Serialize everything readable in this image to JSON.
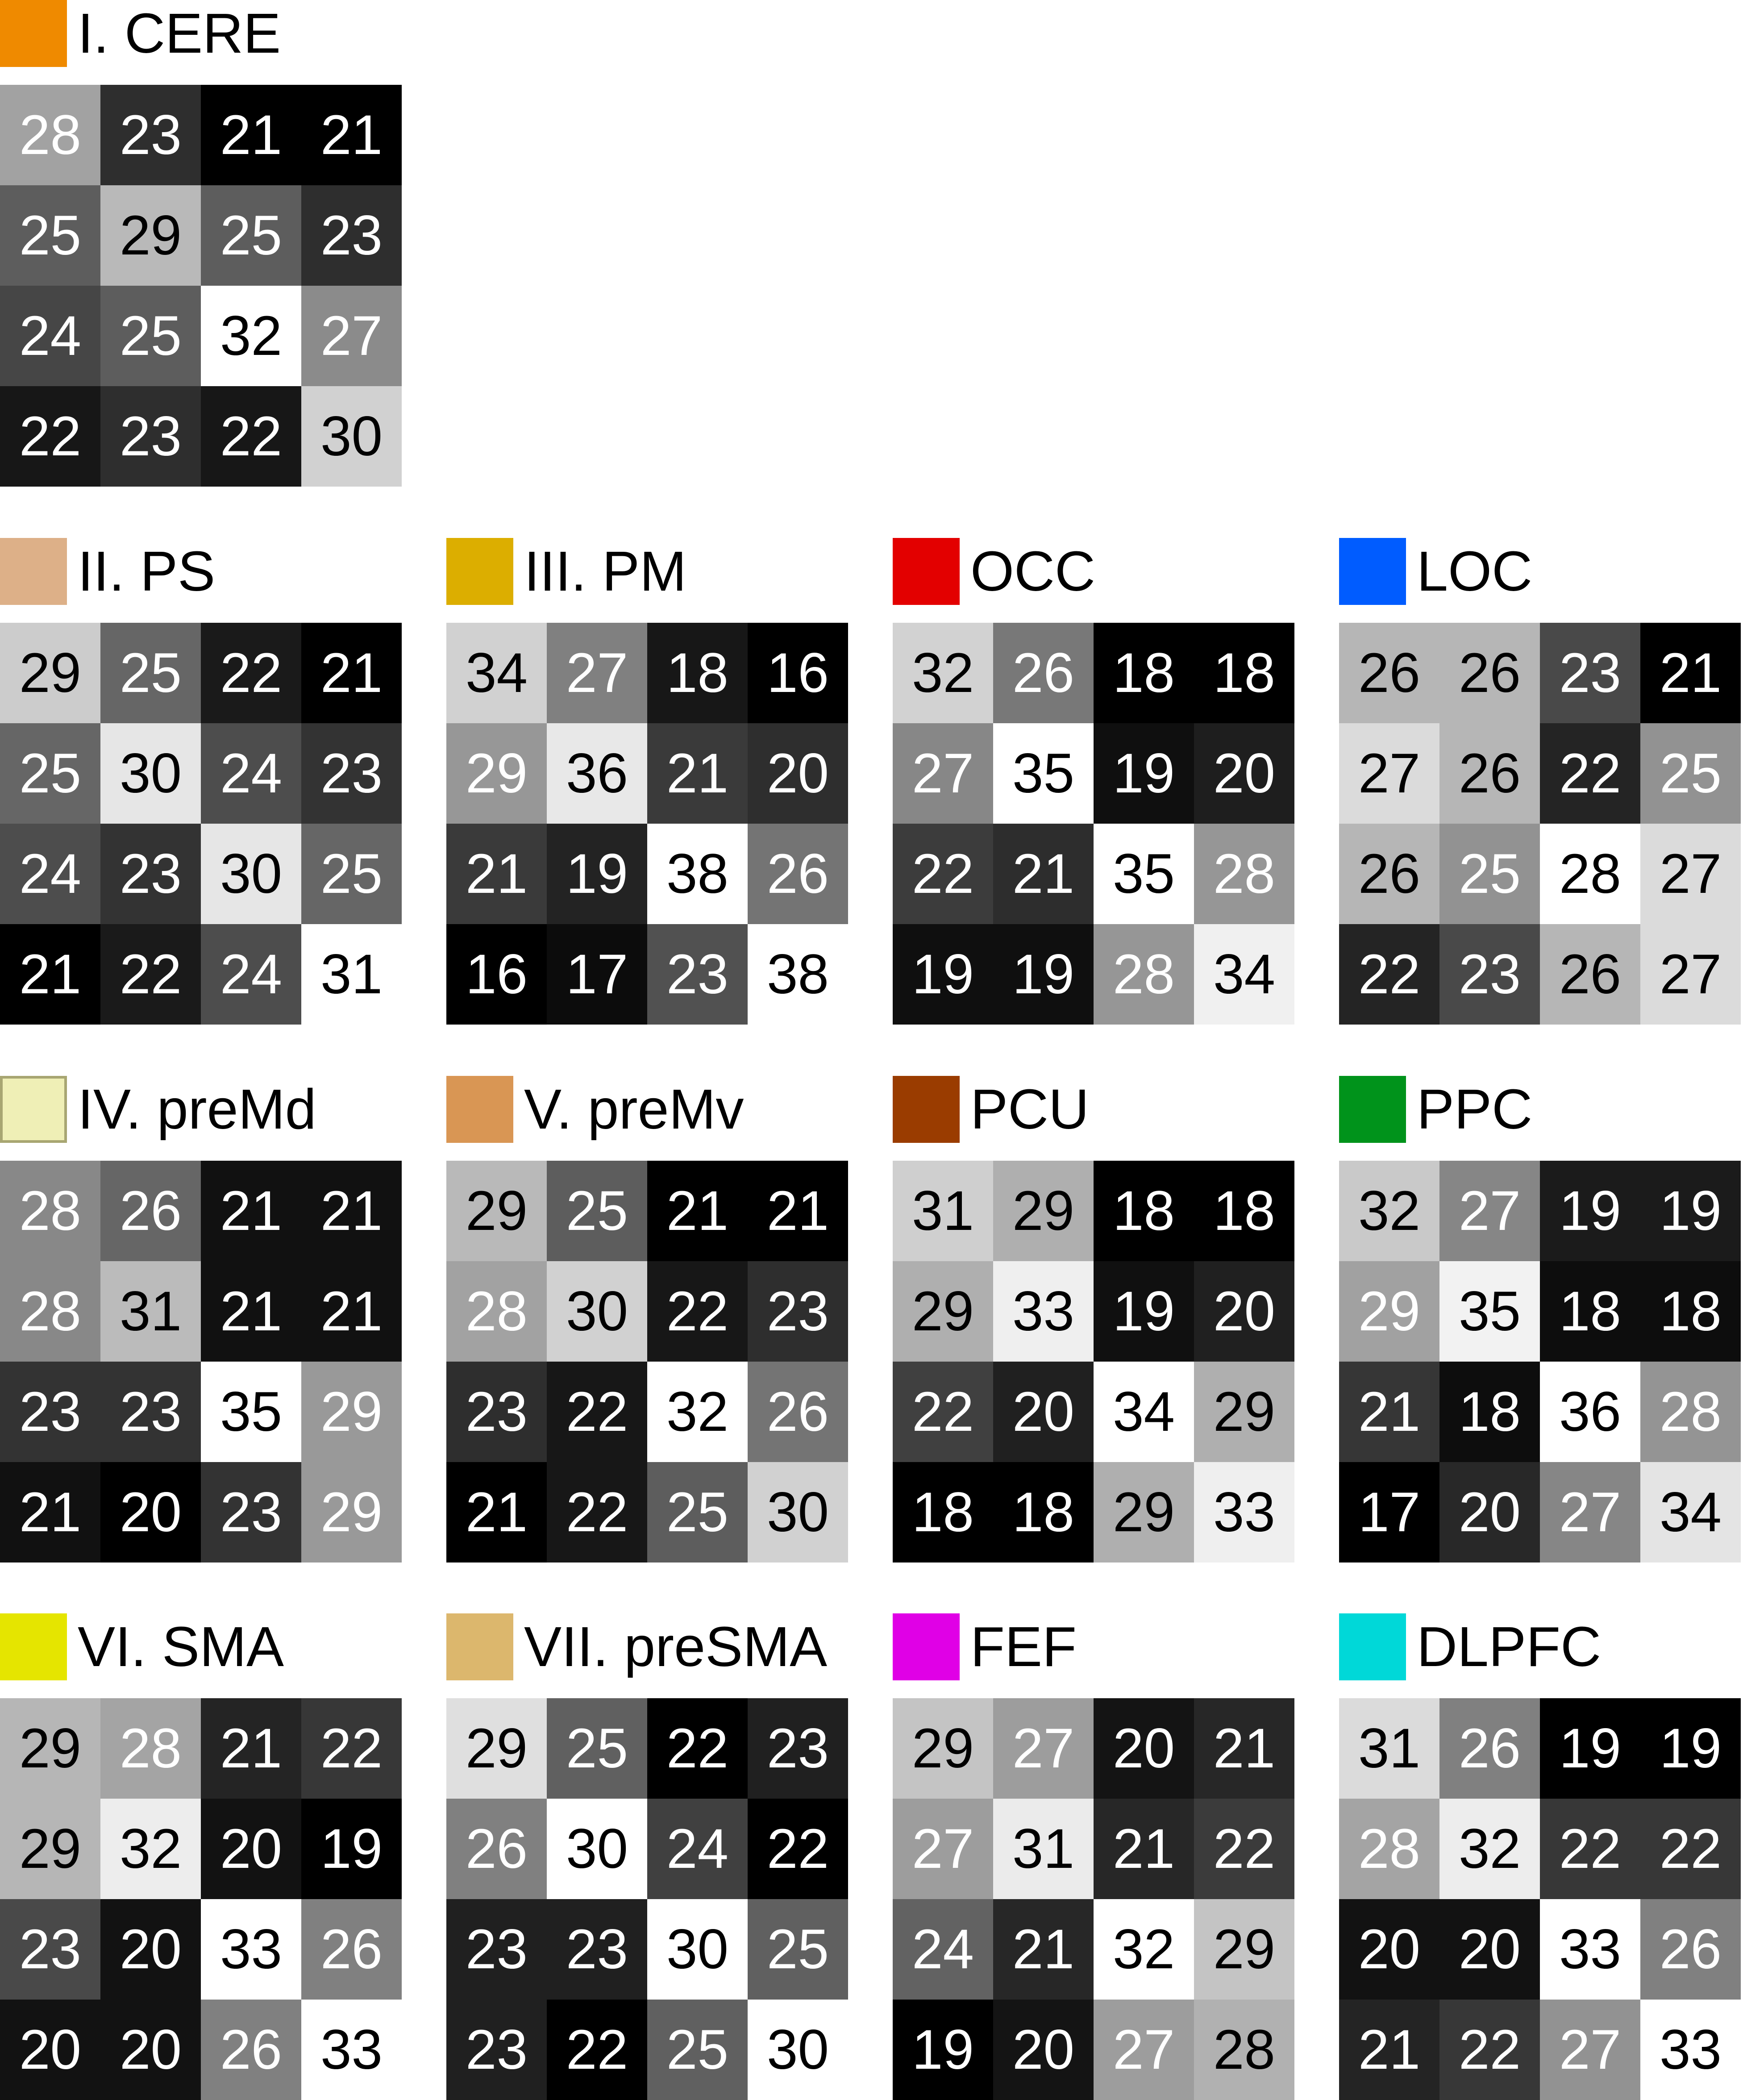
{
  "chart_data": [
    {
      "type": "heatmap",
      "title": "I. CERE",
      "legend_color": "#ef8a00",
      "values": [
        [
          28,
          23,
          21,
          21
        ],
        [
          25,
          29,
          25,
          23
        ],
        [
          24,
          25,
          32,
          27
        ],
        [
          22,
          23,
          22,
          30
        ]
      ]
    },
    {
      "type": "heatmap",
      "title": "II. PS",
      "legend_color": "#ddb088",
      "values": [
        [
          29,
          25,
          22,
          21
        ],
        [
          25,
          30,
          24,
          23
        ],
        [
          24,
          23,
          30,
          25
        ],
        [
          21,
          22,
          24,
          31
        ]
      ]
    },
    {
      "type": "heatmap",
      "title": "III. PM",
      "legend_color": "#dcae00",
      "values": [
        [
          34,
          27,
          18,
          16
        ],
        [
          29,
          36,
          21,
          20
        ],
        [
          21,
          19,
          38,
          26
        ],
        [
          16,
          17,
          23,
          38
        ]
      ]
    },
    {
      "type": "heatmap",
      "title": "OCC",
      "legend_color": "#e30000",
      "values": [
        [
          32,
          26,
          18,
          18
        ],
        [
          27,
          35,
          19,
          20
        ],
        [
          22,
          21,
          35,
          28
        ],
        [
          19,
          19,
          28,
          34
        ]
      ]
    },
    {
      "type": "heatmap",
      "title": "LOC",
      "legend_color": "#005cff",
      "values": [
        [
          26,
          26,
          23,
          21
        ],
        [
          27,
          26,
          22,
          25
        ],
        [
          26,
          25,
          28,
          27
        ],
        [
          22,
          23,
          26,
          27
        ]
      ]
    },
    {
      "type": "heatmap",
      "title": "IV. preMd",
      "legend_color": "#efefb6",
      "values": [
        [
          28,
          26,
          21,
          21
        ],
        [
          28,
          31,
          21,
          21
        ],
        [
          23,
          23,
          35,
          29
        ],
        [
          21,
          20,
          23,
          29
        ]
      ]
    },
    {
      "type": "heatmap",
      "title": "V. preMv",
      "legend_color": "#d99654",
      "values": [
        [
          29,
          25,
          21,
          21
        ],
        [
          28,
          30,
          22,
          23
        ],
        [
          23,
          22,
          32,
          26
        ],
        [
          21,
          22,
          25,
          30
        ]
      ]
    },
    {
      "type": "heatmap",
      "title": "PCU",
      "legend_color": "#9a3c00",
      "values": [
        [
          31,
          29,
          18,
          18
        ],
        [
          29,
          33,
          19,
          20
        ],
        [
          22,
          20,
          34,
          29
        ],
        [
          18,
          18,
          29,
          33
        ]
      ]
    },
    {
      "type": "heatmap",
      "title": "PPC",
      "legend_color": "#00931b",
      "values": [
        [
          32,
          27,
          19,
          19
        ],
        [
          29,
          35,
          18,
          18
        ],
        [
          21,
          18,
          36,
          28
        ],
        [
          17,
          20,
          27,
          34
        ]
      ]
    },
    {
      "type": "heatmap",
      "title": "VI. SMA",
      "legend_color": "#e5e500",
      "values": [
        [
          29,
          28,
          21,
          22
        ],
        [
          29,
          32,
          20,
          19
        ],
        [
          23,
          20,
          33,
          26
        ],
        [
          20,
          20,
          26,
          33
        ]
      ]
    },
    {
      "type": "heatmap",
      "title": "VII. preSMA",
      "legend_color": "#dcb76d",
      "values": [
        [
          29,
          25,
          22,
          23
        ],
        [
          26,
          30,
          24,
          22
        ],
        [
          23,
          23,
          30,
          25
        ],
        [
          23,
          22,
          25,
          30
        ]
      ]
    },
    {
      "type": "heatmap",
      "title": "FEF",
      "legend_color": "#e000e6",
      "values": [
        [
          29,
          27,
          20,
          21
        ],
        [
          27,
          31,
          21,
          22
        ],
        [
          24,
          21,
          32,
          29
        ],
        [
          19,
          20,
          27,
          28
        ]
      ]
    },
    {
      "type": "heatmap",
      "title": "DLPFC",
      "legend_color": "#00d8d8",
      "values": [
        [
          31,
          26,
          19,
          19
        ],
        [
          28,
          32,
          22,
          22
        ],
        [
          20,
          20,
          33,
          26
        ],
        [
          21,
          22,
          27,
          33
        ]
      ]
    }
  ]
}
